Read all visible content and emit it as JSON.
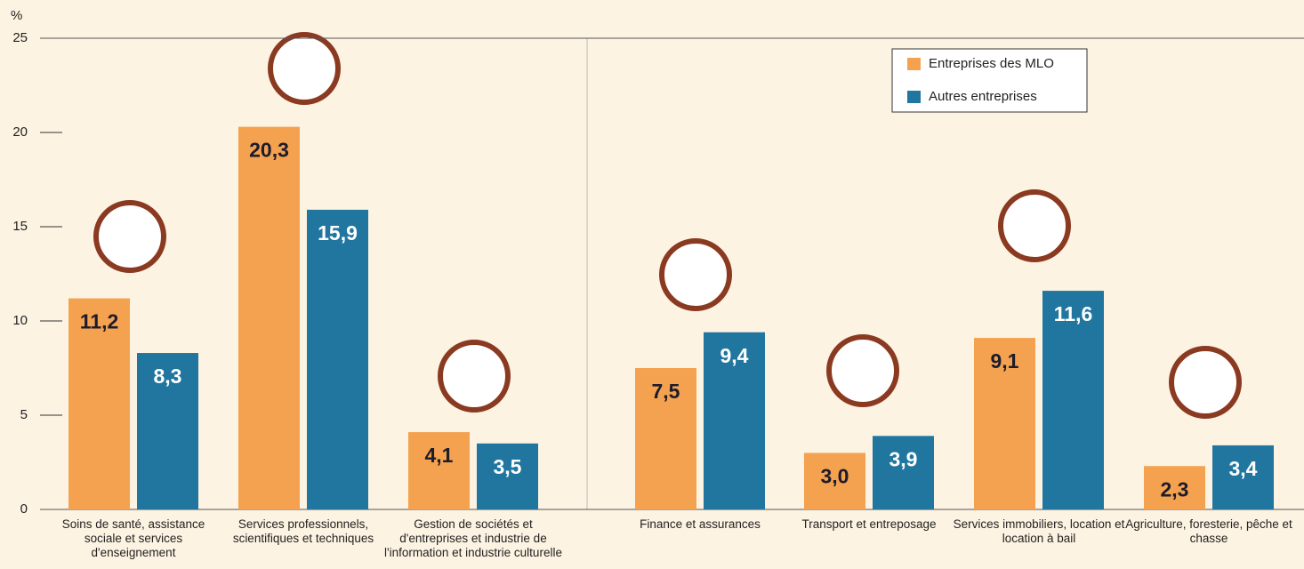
{
  "chart_data": {
    "type": "bar",
    "y_label": "%",
    "categories": [
      "Soins de santé, assistance sociale et services d'enseignement",
      "Services professionnels, scientifiques et techniques",
      "Gestion de sociétés et d'entreprises et industrie de l'information et industrie culturelle",
      "Finance et assurances",
      "Transport et entreposage",
      "Services immobiliers, location et location à bail",
      "Agriculture, foresterie, pêche et chasse"
    ],
    "series": [
      {
        "name": "Entreprises des MLO",
        "color": "#f4a24f",
        "values": [
          11.2,
          20.3,
          4.1,
          7.5,
          3.0,
          9.1,
          2.3
        ],
        "value_labels": [
          "11,2",
          "20,3",
          "4,1",
          "7,5",
          "3,0",
          "9,1",
          "2,3"
        ]
      },
      {
        "name": "Autres entreprises",
        "color": "#21769f",
        "values": [
          8.3,
          15.9,
          3.5,
          9.4,
          3.9,
          11.6,
          3.4
        ],
        "value_labels": [
          "8,3",
          "15,9",
          "3,5",
          "9,4",
          "3,9",
          "11,6",
          "3,4"
        ]
      }
    ],
    "ylim": [
      0,
      25
    ],
    "yticks": [
      0,
      5,
      10,
      15,
      20,
      25
    ],
    "legend": "top-right"
  }
}
